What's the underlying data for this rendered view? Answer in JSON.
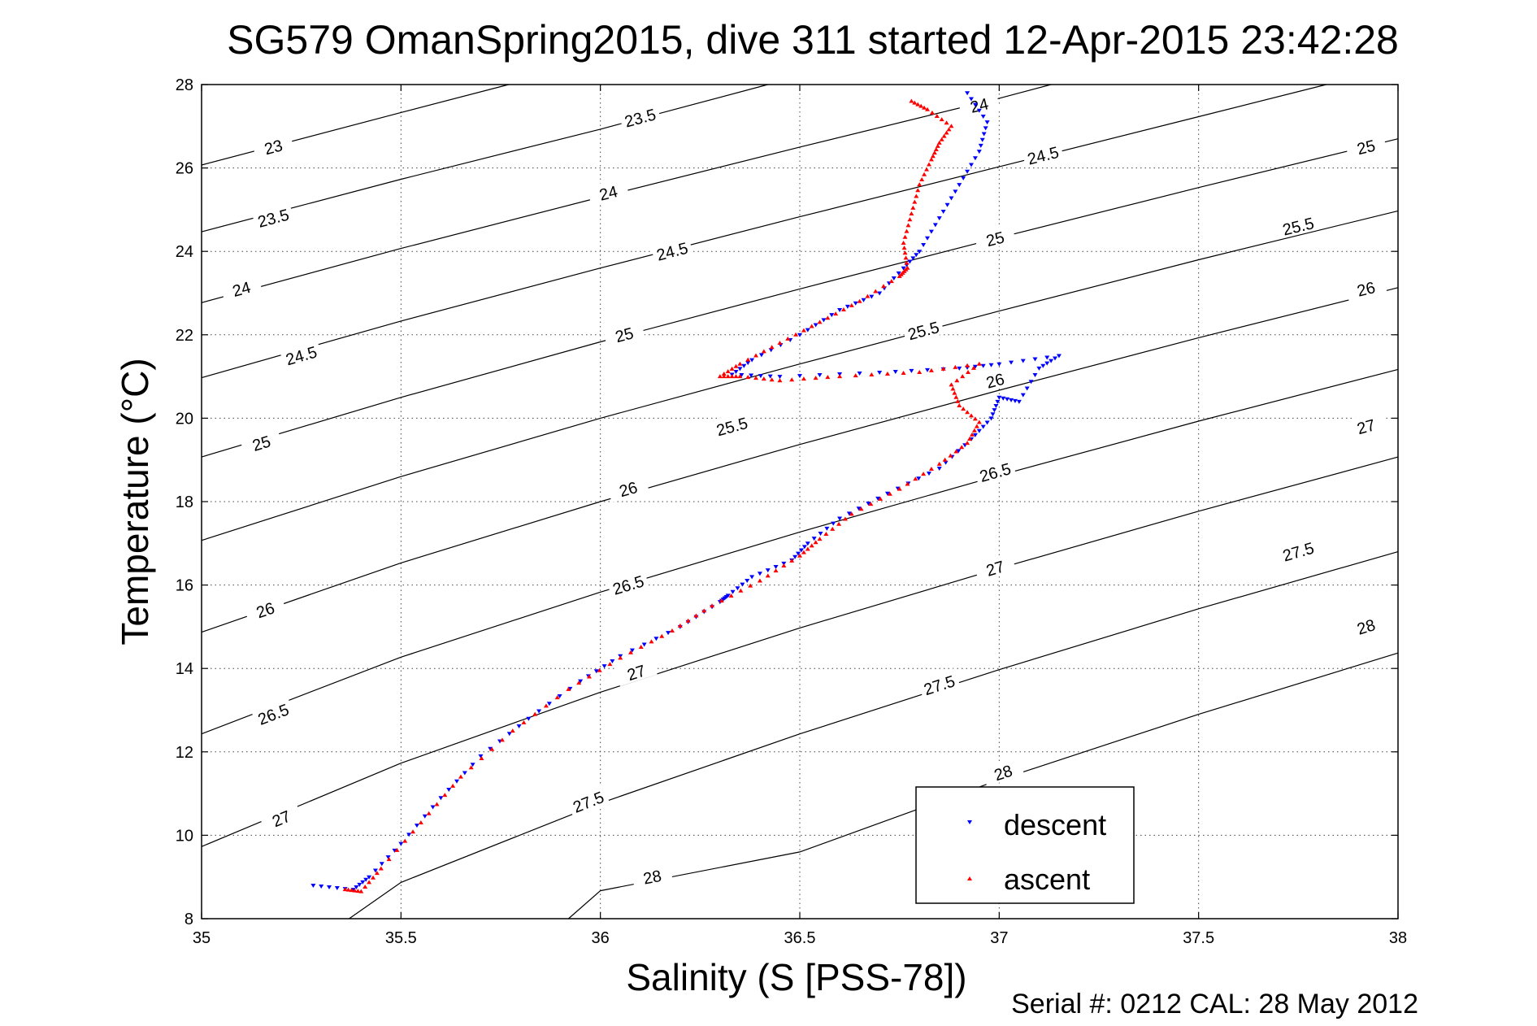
{
  "chart_data": {
    "type": "scatter",
    "title": "SG579 OmanSpring2015, dive 311 started 12-Apr-2015 23:42:28",
    "xlabel": "Salinity (S [PSS-78])",
    "ylabel": "Temperature (°C)",
    "footer": "Serial #: 0212  CAL: 28 May 2012",
    "xlim": [
      35,
      38
    ],
    "ylim": [
      8,
      28
    ],
    "xticks": [
      35,
      35.5,
      36,
      36.5,
      37,
      37.5,
      38
    ],
    "xtick_labels": [
      "35",
      "35.5",
      "36",
      "36.5",
      "37",
      "37.5",
      "38"
    ],
    "yticks": [
      8,
      10,
      12,
      14,
      16,
      18,
      20,
      22,
      24,
      26,
      28
    ],
    "ytick_labels": [
      "8",
      "10",
      "12",
      "14",
      "16",
      "18",
      "20",
      "22",
      "24",
      "26",
      "28"
    ],
    "grid": true,
    "legend_position": "bottom-right",
    "colors": {
      "descent": "#0000ff",
      "ascent": "#ff0000",
      "contour": "#000000"
    },
    "series": [
      {
        "name": "descent",
        "marker": "down-triangle",
        "points": [
          [
            35.28,
            8.8
          ],
          [
            35.38,
            8.7
          ],
          [
            35.42,
            9.0
          ],
          [
            35.5,
            9.8
          ],
          [
            35.6,
            10.9
          ],
          [
            35.7,
            11.9
          ],
          [
            35.82,
            12.8
          ],
          [
            35.95,
            13.7
          ],
          [
            36.05,
            14.3
          ],
          [
            36.2,
            15.0
          ],
          [
            36.3,
            15.6
          ],
          [
            36.32,
            15.75
          ],
          [
            36.38,
            16.2
          ],
          [
            36.48,
            16.6
          ],
          [
            36.52,
            17.0
          ],
          [
            36.6,
            17.6
          ],
          [
            36.72,
            18.2
          ],
          [
            36.85,
            18.8
          ],
          [
            36.93,
            19.5
          ],
          [
            36.98,
            20.0
          ],
          [
            37.0,
            20.5
          ],
          [
            37.05,
            20.4
          ],
          [
            37.1,
            21.2
          ],
          [
            37.15,
            21.5
          ],
          [
            37.0,
            21.3
          ],
          [
            36.9,
            21.2
          ],
          [
            36.7,
            21.1
          ],
          [
            36.45,
            21.0
          ],
          [
            36.33,
            21.05
          ],
          [
            36.38,
            21.4
          ],
          [
            36.5,
            22.0
          ],
          [
            36.6,
            22.6
          ],
          [
            36.7,
            23.0
          ],
          [
            36.76,
            23.6
          ],
          [
            36.8,
            24.0
          ],
          [
            36.85,
            24.8
          ],
          [
            36.9,
            25.6
          ],
          [
            36.95,
            26.4
          ],
          [
            36.97,
            27.1
          ],
          [
            36.92,
            27.8
          ]
        ]
      },
      {
        "name": "ascent",
        "marker": "up-triangle",
        "points": [
          [
            35.36,
            8.7
          ],
          [
            35.4,
            8.65
          ],
          [
            35.45,
            9.2
          ],
          [
            35.55,
            10.3
          ],
          [
            35.65,
            11.4
          ],
          [
            35.78,
            12.5
          ],
          [
            35.92,
            13.5
          ],
          [
            36.05,
            14.25
          ],
          [
            36.18,
            14.9
          ],
          [
            36.28,
            15.5
          ],
          [
            36.4,
            16.1
          ],
          [
            36.5,
            16.7
          ],
          [
            36.55,
            17.1
          ],
          [
            36.63,
            17.7
          ],
          [
            36.75,
            18.3
          ],
          [
            36.85,
            18.9
          ],
          [
            36.92,
            19.4
          ],
          [
            36.95,
            19.9
          ],
          [
            36.9,
            20.3
          ],
          [
            36.88,
            20.8
          ],
          [
            36.95,
            21.3
          ],
          [
            36.8,
            21.1
          ],
          [
            36.6,
            21.0
          ],
          [
            36.45,
            20.9
          ],
          [
            36.35,
            21.0
          ],
          [
            36.3,
            21.0
          ],
          [
            36.35,
            21.3
          ],
          [
            36.45,
            21.8
          ],
          [
            36.55,
            22.3
          ],
          [
            36.65,
            22.8
          ],
          [
            36.75,
            23.4
          ],
          [
            36.77,
            23.6
          ],
          [
            36.76,
            24.2
          ],
          [
            36.78,
            24.9
          ],
          [
            36.8,
            25.6
          ],
          [
            36.83,
            26.2
          ],
          [
            36.85,
            26.6
          ],
          [
            36.88,
            27.0
          ],
          [
            36.82,
            27.4
          ],
          [
            36.78,
            27.6
          ]
        ]
      }
    ],
    "contours": [
      {
        "level": "23",
        "points": [
          [
            35.0,
            26.07
          ],
          [
            35.5,
            27.33
          ],
          [
            35.77,
            28.0
          ]
        ]
      },
      {
        "level": "23.5",
        "points": [
          [
            35.0,
            24.47
          ],
          [
            35.5,
            25.73
          ],
          [
            36.0,
            26.93
          ],
          [
            36.42,
            28.0
          ]
        ]
      },
      {
        "level": "24",
        "points": [
          [
            35.0,
            22.77
          ],
          [
            35.5,
            24.07
          ],
          [
            36.0,
            25.3
          ],
          [
            36.5,
            26.5
          ],
          [
            37.0,
            27.67
          ],
          [
            37.13,
            28.0
          ]
        ]
      },
      {
        "level": "24.5",
        "points": [
          [
            35.0,
            20.97
          ],
          [
            35.5,
            22.33
          ],
          [
            36.0,
            23.6
          ],
          [
            36.5,
            24.83
          ],
          [
            37.0,
            26.03
          ],
          [
            37.5,
            27.23
          ],
          [
            37.82,
            28.0
          ]
        ]
      },
      {
        "level": "25",
        "points": [
          [
            35.0,
            19.07
          ],
          [
            35.5,
            20.5
          ],
          [
            36.0,
            21.83
          ],
          [
            36.5,
            23.1
          ],
          [
            37.0,
            24.33
          ],
          [
            37.5,
            25.53
          ],
          [
            38.0,
            26.7
          ]
        ]
      },
      {
        "level": "25.5",
        "points": [
          [
            35.0,
            17.07
          ],
          [
            35.5,
            18.6
          ],
          [
            36.0,
            20.0
          ],
          [
            36.5,
            21.3
          ],
          [
            37.0,
            22.57
          ],
          [
            37.5,
            23.8
          ],
          [
            38.0,
            24.97
          ]
        ]
      },
      {
        "level": "26",
        "points": [
          [
            35.0,
            14.87
          ],
          [
            35.5,
            16.53
          ],
          [
            36.0,
            18.0
          ],
          [
            36.5,
            19.37
          ],
          [
            37.0,
            20.67
          ],
          [
            37.5,
            21.93
          ],
          [
            38.0,
            23.13
          ]
        ]
      },
      {
        "level": "26.5",
        "points": [
          [
            35.0,
            12.43
          ],
          [
            35.5,
            14.27
          ],
          [
            36.0,
            15.83
          ],
          [
            36.5,
            17.27
          ],
          [
            37.0,
            18.63
          ],
          [
            37.5,
            19.93
          ],
          [
            38.0,
            21.17
          ]
        ]
      },
      {
        "level": "27",
        "points": [
          [
            35.0,
            9.73
          ],
          [
            35.5,
            11.73
          ],
          [
            36.0,
            13.43
          ],
          [
            36.5,
            14.97
          ],
          [
            37.0,
            16.4
          ],
          [
            37.5,
            17.77
          ],
          [
            38.0,
            19.07
          ]
        ]
      },
      {
        "level": "27.5",
        "points": [
          [
            35.37,
            8.0
          ],
          [
            35.5,
            8.87
          ],
          [
            36.0,
            10.77
          ],
          [
            36.5,
            12.43
          ],
          [
            37.0,
            13.97
          ],
          [
            37.5,
            15.43
          ],
          [
            38.0,
            16.8
          ]
        ]
      },
      {
        "level": "28",
        "points": [
          [
            35.92,
            8.0
          ],
          [
            36.0,
            8.67
          ],
          [
            36.5,
            9.6
          ],
          [
            37.0,
            11.33
          ],
          [
            37.5,
            12.9
          ],
          [
            38.0,
            14.37
          ]
        ]
      }
    ],
    "contour_label_spots": [
      [
        "23",
        35.18,
        26.5
      ],
      [
        "23.5",
        35.18,
        24.8
      ],
      [
        "23.5",
        36.1,
        27.2
      ],
      [
        "24",
        35.1,
        23.1
      ],
      [
        "24",
        36.02,
        25.4
      ],
      [
        "24",
        36.95,
        27.5
      ],
      [
        "24.5",
        35.25,
        21.5
      ],
      [
        "24.5",
        36.18,
        24.0
      ],
      [
        "24.5",
        37.11,
        26.3
      ],
      [
        "25",
        35.15,
        19.4
      ],
      [
        "25",
        36.06,
        22.0
      ],
      [
        "25",
        36.99,
        24.3
      ],
      [
        "25",
        37.92,
        26.5
      ],
      [
        "25.5",
        36.33,
        19.8
      ],
      [
        "25.5",
        36.81,
        22.1
      ],
      [
        "25.5",
        37.75,
        24.6
      ],
      [
        "26",
        35.16,
        15.4
      ],
      [
        "26",
        36.07,
        18.3
      ],
      [
        "26",
        36.99,
        20.9
      ],
      [
        "26",
        37.92,
        23.1
      ],
      [
        "26.5",
        35.18,
        12.9
      ],
      [
        "26.5",
        36.07,
        16.0
      ],
      [
        "26.5",
        36.99,
        18.7
      ],
      [
        "27",
        35.2,
        10.4
      ],
      [
        "27",
        36.09,
        13.9
      ],
      [
        "27",
        36.99,
        16.4
      ],
      [
        "27",
        37.92,
        19.8
      ],
      [
        "27.5",
        35.97,
        10.8
      ],
      [
        "27.5",
        36.85,
        13.6
      ],
      [
        "27.5",
        37.75,
        16.8
      ],
      [
        "28",
        36.13,
        9.0
      ],
      [
        "28",
        37.01,
        11.5
      ],
      [
        "28",
        37.92,
        15.0
      ]
    ]
  }
}
